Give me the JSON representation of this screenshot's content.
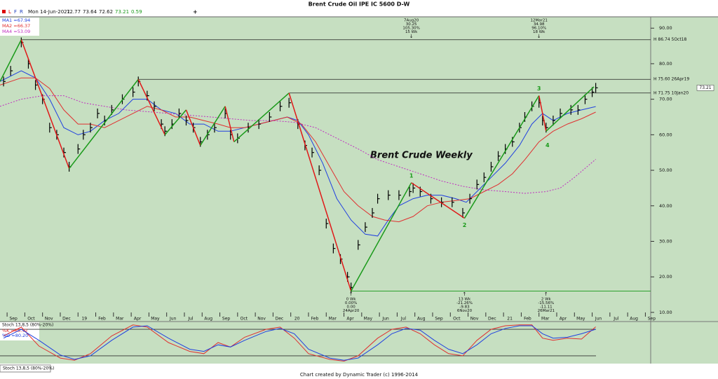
{
  "chart_data": {
    "type": "financial",
    "title": "Brent Crude Oil IPE IC 5600 D-W",
    "header": {
      "flags": [
        "L",
        "F",
        "R"
      ],
      "date": "Mon 14-Jun-2021",
      "open": 72.77,
      "high": 73.64,
      "low": 72.62,
      "close": 73.21,
      "change": 0.59
    },
    "annotation_title": "Brent Crude Weekly",
    "xlim": [
      -0.4,
      36.3
    ],
    "xticks": [
      {
        "value": 0,
        "label": "Sep"
      },
      {
        "value": 1,
        "label": "Oct"
      },
      {
        "value": 2,
        "label": "Nov"
      },
      {
        "value": 3,
        "label": "Dec"
      },
      {
        "value": 4,
        "label": "19"
      },
      {
        "value": 5,
        "label": "Feb"
      },
      {
        "value": 6,
        "label": "Mar"
      },
      {
        "value": 7,
        "label": "Apr"
      },
      {
        "value": 8,
        "label": "May"
      },
      {
        "value": 9,
        "label": "Jun"
      },
      {
        "value": 10,
        "label": "Jul"
      },
      {
        "value": 11,
        "label": "Aug"
      },
      {
        "value": 12,
        "label": "Sep"
      },
      {
        "value": 13,
        "label": "Oct"
      },
      {
        "value": 14,
        "label": "Nov"
      },
      {
        "value": 15,
        "label": "Dec"
      },
      {
        "value": 16,
        "label": "20"
      },
      {
        "value": 17,
        "label": "Feb"
      },
      {
        "value": 18,
        "label": "Mar"
      },
      {
        "value": 19,
        "label": "Apr"
      },
      {
        "value": 20,
        "label": "May"
      },
      {
        "value": 21,
        "label": "Jun"
      },
      {
        "value": 22,
        "label": "Jul"
      },
      {
        "value": 23,
        "label": "Aug"
      },
      {
        "value": 24,
        "label": "Sep"
      },
      {
        "value": 25,
        "label": "Oct"
      },
      {
        "value": 26,
        "label": "Nov"
      },
      {
        "value": 27,
        "label": "Dec"
      },
      {
        "value": 28,
        "label": "21"
      },
      {
        "value": 29,
        "label": "Feb"
      },
      {
        "value": 30,
        "label": "Mar"
      },
      {
        "value": 31,
        "label": "Apr"
      },
      {
        "value": 32,
        "label": "May"
      },
      {
        "value": 33,
        "label": "Jun"
      },
      {
        "value": 34,
        "label": "Jul"
      },
      {
        "value": 35,
        "label": "Aug"
      },
      {
        "value": 36,
        "label": "Sep"
      }
    ],
    "ylim": [
      8.8,
      93
    ],
    "yticks": [
      {
        "value": 10,
        "label": "10.00"
      },
      {
        "value": 20,
        "label": "20.00"
      },
      {
        "value": 30,
        "label": "30.00"
      },
      {
        "value": 40,
        "label": "40.00"
      },
      {
        "value": 50,
        "label": "50.00"
      },
      {
        "value": 60,
        "label": "60.00"
      },
      {
        "value": 70,
        "label": "70.00"
      },
      {
        "value": 80,
        "label": "80.00"
      },
      {
        "value": 90,
        "label": "90.00"
      }
    ],
    "last_price": {
      "value": 73.21,
      "label": "73.21"
    },
    "price": {
      "color": "#000000",
      "x": [
        -0.2,
        0.2,
        0.8,
        1.2,
        1.6,
        2.0,
        2.4,
        2.8,
        3.2,
        3.5,
        4.0,
        4.3,
        4.7,
        5.1,
        5.5,
        5.9,
        6.5,
        7.1,
        7.4,
        7.9,
        8.3,
        8.7,
        8.9,
        9.3,
        9.7,
        10.1,
        10.5,
        10.9,
        11.3,
        11.7,
        12.3,
        12.6,
        13.0,
        13.6,
        14.2,
        14.8,
        15.4,
        15.9,
        16.4,
        16.8,
        17.2,
        17.6,
        18.0,
        18.4,
        18.8,
        19.2,
        19.4,
        19.8,
        20.2,
        20.6,
        20.9,
        21.5,
        22.1,
        22.7,
        22.9,
        23.3,
        23.9,
        24.5,
        25.1,
        25.7,
        26.1,
        26.5,
        26.9,
        27.3,
        27.7,
        28.1,
        28.5,
        28.9,
        29.2,
        29.6,
        30.0,
        30.2,
        30.4,
        30.8,
        31.2,
        31.8,
        32.2,
        32.6,
        33.0,
        33.2
      ],
      "values": [
        75,
        78,
        86,
        80,
        74,
        70,
        62,
        60,
        55,
        51,
        56,
        60,
        62,
        66,
        64,
        67,
        70,
        72,
        75,
        71,
        68,
        63,
        61,
        63,
        66,
        64,
        62,
        58,
        60,
        62,
        66,
        60,
        59,
        62,
        63,
        65,
        68,
        69,
        63,
        57,
        55,
        50,
        35,
        28,
        25,
        20,
        17,
        29,
        34,
        38,
        42,
        43,
        43,
        44,
        45,
        44,
        42,
        41,
        41,
        38,
        42,
        46,
        48,
        51,
        54,
        56,
        58,
        62,
        65,
        68,
        69,
        64,
        62,
        64,
        66,
        67,
        67,
        70,
        72,
        73.21
      ]
    },
    "series": [
      {
        "name": "MA1 =67.94",
        "color": "#2040e0",
        "dash": false,
        "x": [
          -0.4,
          0.8,
          1.6,
          2.4,
          3.2,
          4.0,
          4.7,
          5.5,
          6.3,
          7.1,
          7.9,
          8.7,
          9.5,
          10.3,
          11.1,
          11.9,
          12.6,
          13.4,
          14.2,
          15.0,
          15.8,
          16.4,
          17.0,
          17.8,
          18.6,
          19.4,
          20.2,
          20.9,
          21.5,
          22.1,
          22.9,
          23.7,
          24.5,
          25.3,
          25.9,
          26.5,
          27.3,
          28.1,
          28.9,
          29.6,
          30.2,
          30.8,
          31.6,
          32.4,
          33.2
        ],
        "values": [
          75,
          78,
          76,
          70,
          62,
          60,
          61,
          64,
          66,
          70,
          70,
          67,
          66,
          63,
          63,
          61,
          61,
          62,
          63,
          64,
          65,
          64,
          60,
          52,
          42,
          36,
          32,
          31.5,
          36,
          40,
          42,
          43,
          43,
          42,
          41,
          44,
          48,
          52,
          57,
          63,
          66,
          64,
          66,
          67,
          67.94
        ]
      },
      {
        "name": "MA2 =66.37",
        "color": "#e03030",
        "dash": false,
        "x": [
          -0.4,
          0.8,
          1.6,
          2.4,
          3.2,
          4.0,
          4.7,
          5.5,
          6.3,
          7.1,
          7.9,
          8.7,
          9.5,
          10.3,
          11.1,
          11.9,
          12.6,
          13.4,
          14.2,
          15.0,
          15.8,
          16.6,
          17.4,
          18.2,
          19.0,
          19.8,
          20.6,
          21.3,
          22.1,
          22.9,
          23.7,
          24.5,
          25.3,
          26.1,
          26.9,
          27.7,
          28.5,
          29.2,
          30.0,
          30.8,
          31.6,
          32.4,
          33.2
        ],
        "values": [
          74,
          76,
          76,
          73,
          67,
          63,
          63,
          62,
          64,
          66,
          68,
          67,
          65,
          65,
          64,
          63,
          62,
          62,
          63,
          64,
          65,
          63,
          58,
          51,
          44,
          40,
          37,
          36,
          35.5,
          37,
          40,
          41,
          41.5,
          42,
          44,
          46,
          49,
          53,
          58,
          61,
          63,
          64.5,
          66.37
        ]
      },
      {
        "name": "MA4 =53.09",
        "color": "#c030c0",
        "dash": true,
        "x": [
          -0.4,
          0.8,
          2.0,
          3.2,
          4.3,
          5.5,
          6.7,
          7.9,
          9.1,
          10.3,
          11.5,
          12.6,
          13.8,
          15.0,
          16.2,
          17.4,
          18.6,
          19.8,
          20.9,
          22.1,
          23.3,
          24.5,
          25.7,
          26.9,
          28.1,
          29.2,
          30.4,
          31.2,
          32.0,
          33.2
        ],
        "values": [
          68,
          70,
          71,
          71,
          69,
          68,
          67,
          66.5,
          66,
          65.5,
          65,
          64.5,
          64,
          64,
          63.5,
          62,
          59,
          56,
          53,
          51,
          49,
          47,
          45.5,
          44.5,
          44,
          43.5,
          44,
          45,
          48,
          53.09
        ]
      }
    ],
    "zigzag": {
      "up_color": "#1a9a1a",
      "down_color": "#e01818",
      "x": [
        -0.4,
        0.8,
        3.5,
        7.4,
        8.9,
        10.1,
        10.9,
        12.3,
        12.8,
        15.9,
        19.4,
        22.8,
        25.8,
        30.0,
        30.4,
        33.1
      ],
      "values": [
        75,
        86.74,
        50.5,
        75.6,
        60,
        67,
        57,
        68,
        58,
        71.75,
        16,
        46.5,
        36.5,
        71,
        61,
        73.5
      ]
    },
    "levels": [
      {
        "value": 86.74,
        "label": "H 86.74 5Oct18",
        "from": 0.8
      },
      {
        "value": 75.6,
        "label": "H 75.60 26Apr19",
        "from": 7.4
      },
      {
        "value": 71.75,
        "label": "H 71.75 10Jan20",
        "from": 15.9
      }
    ],
    "floor_line": {
      "value": 16,
      "from": 19.4,
      "color": "#2ca02c"
    },
    "wave_labels": [
      "1",
      "2",
      "3",
      "4"
    ],
    "swing_notes_top": [
      [
        "7Aug20",
        "30.25",
        "105.30%",
        "15 Wk"
      ],
      [
        "12Mar21",
        "34.98",
        "96.10%",
        "18 Wk"
      ]
    ],
    "swing_notes_bottom": [
      [
        "0 Wk",
        "0.00%",
        "0.00",
        "24Apr20"
      ],
      [
        "13 Wk",
        "-21.26%",
        "-9.83",
        "6Nov20"
      ],
      [
        "2 Wk",
        "-15.56%",
        "-11.11",
        "26Mar21"
      ]
    ],
    "stoch": {
      "title": "Stoch 13,8,5 (80%-20%)",
      "ylim": [
        4,
        96
      ],
      "levels": [
        80,
        20
      ],
      "x": [
        -0.2,
        0.8,
        1.8,
        3.0,
        3.8,
        4.7,
        5.9,
        7.1,
        7.9,
        9.1,
        10.3,
        11.1,
        11.9,
        12.6,
        13.4,
        14.6,
        15.4,
        16.2,
        17.0,
        18.2,
        19.0,
        19.8,
        20.9,
        21.7,
        22.5,
        23.3,
        24.1,
        24.9,
        25.7,
        26.5,
        27.3,
        28.1,
        28.9,
        29.6,
        30.2,
        30.8,
        31.6,
        32.4,
        33.2
      ],
      "series": [
        {
          "name": "%K =85.72",
          "color": "#e03030",
          "values": [
            65,
            85,
            42,
            15,
            10,
            25,
            65,
            90,
            85,
            50,
            30,
            25,
            50,
            40,
            62,
            80,
            85,
            60,
            25,
            12,
            8,
            20,
            60,
            80,
            85,
            70,
            45,
            25,
            20,
            55,
            80,
            88,
            90,
            90,
            60,
            55,
            60,
            58,
            85.72
          ]
        },
        {
          "name": "%D =80.20",
          "color": "#2040e0",
          "values": [
            60,
            80,
            55,
            22,
            12,
            20,
            55,
            85,
            88,
            60,
            35,
            30,
            45,
            40,
            55,
            75,
            82,
            70,
            35,
            15,
            10,
            15,
            45,
            70,
            82,
            78,
            55,
            35,
            25,
            45,
            70,
            82,
            88,
            88,
            70,
            60,
            62,
            70,
            80.2
          ]
        }
      ]
    },
    "tab": "Stoch 13,8,5 (80%-20%)",
    "footer": "Chart created by Dynamic Trader  (c) 1996-2014"
  }
}
